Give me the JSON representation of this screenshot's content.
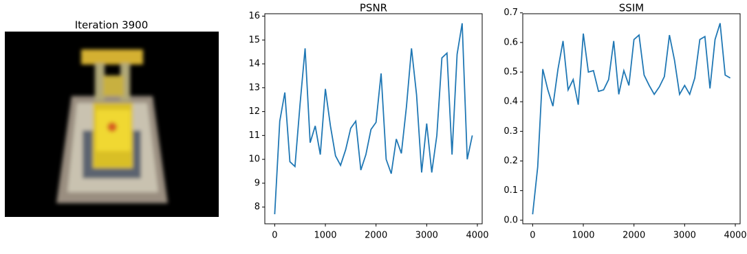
{
  "image": {
    "title": "Iteration 3900"
  },
  "chart_data": [
    {
      "type": "line",
      "title": "PSNR",
      "x": [
        0,
        100,
        200,
        300,
        400,
        500,
        600,
        700,
        800,
        900,
        1000,
        1100,
        1200,
        1300,
        1400,
        1500,
        1600,
        1700,
        1800,
        1900,
        2000,
        2100,
        2200,
        2300,
        2400,
        2500,
        2600,
        2700,
        2800,
        2900,
        3000,
        3100,
        3200,
        3300,
        3400,
        3500,
        3600,
        3700,
        3800,
        3900
      ],
      "series": [
        {
          "color": "#1f77b4",
          "values": [
            7.7,
            11.6,
            12.8,
            9.9,
            9.7,
            12.3,
            14.65,
            10.7,
            11.4,
            10.2,
            12.95,
            11.4,
            10.15,
            9.75,
            10.4,
            11.3,
            11.6,
            9.55,
            10.2,
            11.25,
            11.55,
            13.6,
            10.0,
            9.4,
            10.85,
            10.25,
            12.2,
            14.65,
            12.7,
            9.45,
            11.5,
            9.45,
            11.0,
            14.25,
            14.45,
            10.2,
            14.4,
            15.7,
            10.0,
            11.0
          ]
        }
      ],
      "xlim": [
        -195,
        4095
      ],
      "xticks": [
        0,
        1000,
        2000,
        3000,
        4000
      ],
      "ylim": [
        7.3,
        16.1
      ],
      "yticks": [
        8,
        9,
        10,
        11,
        12,
        13,
        14,
        15,
        16
      ]
    },
    {
      "type": "line",
      "title": "SSIM",
      "x": [
        0,
        100,
        200,
        300,
        400,
        500,
        600,
        700,
        800,
        900,
        1000,
        1100,
        1200,
        1300,
        1400,
        1500,
        1600,
        1700,
        1800,
        1900,
        2000,
        2100,
        2200,
        2300,
        2400,
        2500,
        2600,
        2700,
        2800,
        2900,
        3000,
        3100,
        3200,
        3300,
        3400,
        3500,
        3600,
        3700,
        3800,
        3900
      ],
      "series": [
        {
          "color": "#1f77b4",
          "values": [
            0.02,
            0.18,
            0.51,
            0.44,
            0.385,
            0.51,
            0.605,
            0.44,
            0.475,
            0.39,
            0.63,
            0.5,
            0.505,
            0.435,
            0.44,
            0.475,
            0.605,
            0.425,
            0.505,
            0.455,
            0.61,
            0.625,
            0.49,
            0.455,
            0.425,
            0.45,
            0.485,
            0.625,
            0.54,
            0.425,
            0.455,
            0.425,
            0.48,
            0.61,
            0.62,
            0.445,
            0.61,
            0.665,
            0.49,
            0.48
          ]
        }
      ],
      "xlim": [
        -195,
        4095
      ],
      "xticks": [
        0,
        1000,
        2000,
        3000,
        4000
      ],
      "ylim": [
        -0.012,
        0.697
      ],
      "yticks": [
        {
          "value": 0,
          "label": "0.0"
        },
        0.1,
        0.2,
        0.3,
        0.4,
        0.5,
        0.6,
        0.7
      ]
    }
  ]
}
